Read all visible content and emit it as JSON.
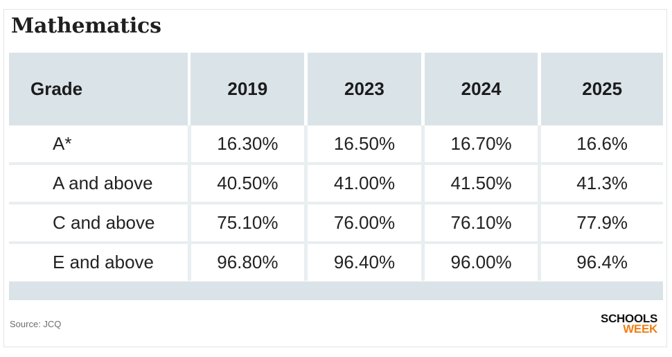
{
  "title": "Mathematics",
  "source": "Source: JCQ",
  "logo": {
    "line1": "SCHOOLS",
    "line2": "WEEK",
    "accent": "#f07f16"
  },
  "colors": {
    "header_bg": "#dae3e8",
    "row_separator": "#e9eef1"
  },
  "chart_data": {
    "type": "table",
    "title": "Mathematics",
    "columns": [
      "Grade",
      "2019",
      "2023",
      "2024",
      "2025"
    ],
    "rows": [
      [
        "A*",
        "16.30%",
        "16.50%",
        "16.70%",
        "16.6%"
      ],
      [
        "A and above",
        "40.50%",
        "41.00%",
        "41.50%",
        "41.3%"
      ],
      [
        "C and above",
        "75.10%",
        "76.00%",
        "76.10%",
        "77.9%"
      ],
      [
        "E and above",
        "96.80%",
        "96.40%",
        "96.00%",
        "96.4%"
      ]
    ]
  }
}
